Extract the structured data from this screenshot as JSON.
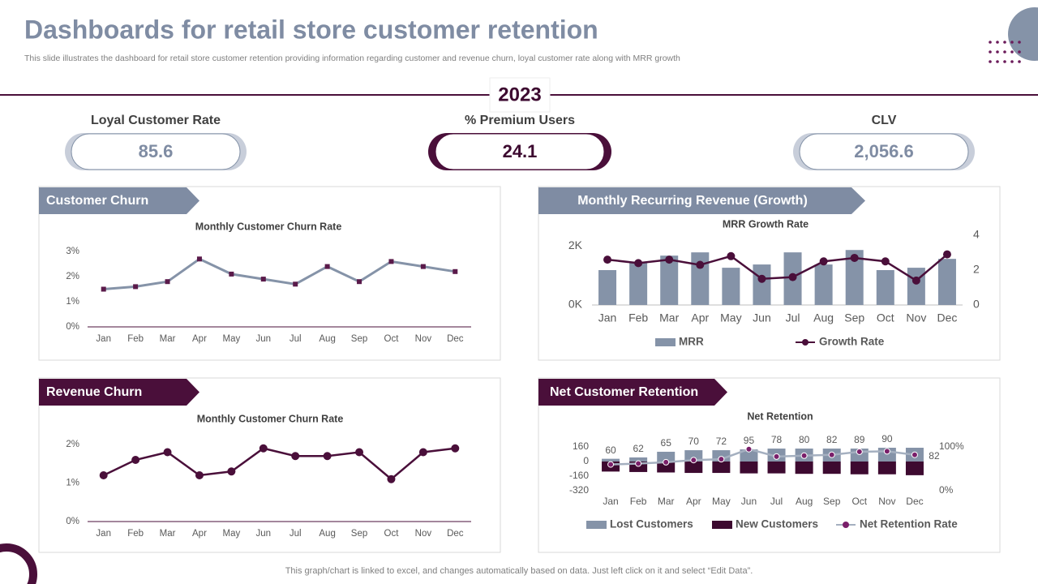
{
  "header": {
    "title": "Dashboards for retail store customer retention",
    "subtitle": "This slide illustrates the dashboard for retail store customer retention providing information regarding customer and revenue churn, loyal customer rate along with MRR growth",
    "year": "2023"
  },
  "kpis": [
    {
      "label": "Loyal Customer Rate",
      "value": 85.6
    },
    {
      "label": "% Premium Users",
      "value": 24.1
    },
    {
      "label": "CLV",
      "value": 2056.6,
      "value_label": "2,056.6"
    }
  ],
  "panels": [
    "Customer Churn",
    "Revenue Churn",
    "Monthly Recurring Revenue (Growth)",
    "Net Customer Retention"
  ],
  "chart_data": [
    {
      "type": "line",
      "title": "Monthly Customer Churn Rate",
      "categories": [
        "Jan",
        "Feb",
        "Mar",
        "Apr",
        "May",
        "Jun",
        "Jul",
        "Aug",
        "Sep",
        "Oct",
        "Nov",
        "Dec"
      ],
      "values": [
        1.5,
        1.6,
        1.8,
        2.7,
        2.1,
        1.9,
        1.7,
        2.4,
        1.8,
        2.6,
        2.4,
        2.2
      ],
      "color": "#8593a8",
      "marker_color": "#5a1a4a",
      "ylim": [
        0,
        3
      ],
      "yticks": [
        {
          "value": 0,
          "label": "0%"
        },
        {
          "value": 1,
          "label": "1%"
        },
        {
          "value": 2,
          "label": "2%"
        },
        {
          "value": 3,
          "label": "3%"
        }
      ]
    },
    {
      "type": "line",
      "title": "Monthly Customer Churn Rate",
      "categories": [
        "Jan",
        "Feb",
        "Mar",
        "Apr",
        "May",
        "Jun",
        "Jul",
        "Aug",
        "Sep",
        "Oct",
        "Nov",
        "Dec"
      ],
      "values": [
        1.2,
        1.6,
        1.8,
        1.2,
        1.3,
        1.9,
        1.7,
        1.7,
        1.8,
        1.1,
        1.8,
        1.9
      ],
      "color": "#4a0f3a",
      "marker_color": "#4a0f3a",
      "ylim": [
        0,
        2
      ],
      "yticks": [
        {
          "value": 0,
          "label": "0%"
        },
        {
          "value": 1,
          "label": "1%"
        },
        {
          "value": 2,
          "label": "2%"
        }
      ]
    },
    {
      "type": "combo",
      "title": "MRR Growth Rate",
      "categories": [
        "Jan",
        "Feb",
        "Mar",
        "Apr",
        "May",
        "Jun",
        "Jul",
        "Aug",
        "Sep",
        "Oct",
        "Nov",
        "Dec"
      ],
      "series": [
        {
          "name": "MRR",
          "type": "bar",
          "color": "#8593a8",
          "values": [
            1180,
            1450,
            1670,
            1780,
            1260,
            1370,
            1780,
            1370,
            1860,
            1180,
            1260,
            1560
          ]
        },
        {
          "name": "Growth Rate",
          "type": "line",
          "axis": "y2",
          "color": "#4a0f3a",
          "values": [
            2.6,
            2.4,
            2.6,
            2.3,
            2.8,
            1.5,
            1.6,
            2.5,
            2.7,
            2.5,
            1.4,
            2.9
          ]
        }
      ],
      "ylim": [
        0,
        2360
      ],
      "yticks": [
        {
          "value": 0,
          "label": "0K"
        },
        {
          "value": 2000,
          "label": "2K"
        }
      ],
      "y2lim": [
        0,
        4
      ],
      "y2ticks": [
        0,
        2,
        4
      ]
    },
    {
      "type": "combo",
      "title": "Net Retention",
      "categories": [
        "Jan",
        "Feb",
        "Mar",
        "Apr",
        "May",
        "Jun",
        "Jul",
        "Aug",
        "Sep",
        "Oct",
        "Nov",
        "Dec"
      ],
      "series": [
        {
          "name": "Lost Customers",
          "type": "bar",
          "color": "#8593a8",
          "values": [
            30,
            45,
            107,
            124,
            124,
            133,
            142,
            142,
            142,
            142,
            151,
            151
          ]
        },
        {
          "name": "New Customers",
          "type": "bar",
          "color": "#3d0a30",
          "values": [
            -110,
            -115,
            -120,
            -125,
            -125,
            -130,
            -130,
            -135,
            -135,
            -140,
            -140,
            -150
          ]
        },
        {
          "name": "Net Retention Rate",
          "type": "line",
          "axis": "y2",
          "color": "#a5b0c0",
          "marker_color": "#7a1f6a",
          "labels": true,
          "values": [
            60,
            62,
            65,
            70,
            72,
            95,
            78,
            80,
            82,
            89,
            90,
            82
          ]
        }
      ],
      "ylim": [
        -320,
        160
      ],
      "yticks": [
        160,
        0,
        -160,
        -320
      ],
      "y2lim": [
        0,
        100
      ],
      "y2ticks": [
        {
          "value": 0,
          "label": "0%"
        },
        {
          "value": 100,
          "label": "100%"
        }
      ]
    }
  ],
  "footer": "This graph/chart is linked to excel,  and changes automatically based on data. Just left click on it and select “Edit Data”."
}
